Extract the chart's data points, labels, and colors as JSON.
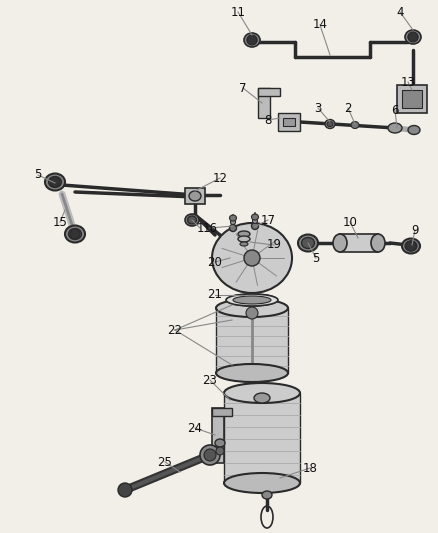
{
  "bg_color": "#f2efe9",
  "line_color": "#2a2a2a",
  "fig_width": 4.38,
  "fig_height": 5.33,
  "dpi": 100,
  "component_color": "#c8c8c8",
  "dark_color": "#555555",
  "mid_color": "#999999"
}
